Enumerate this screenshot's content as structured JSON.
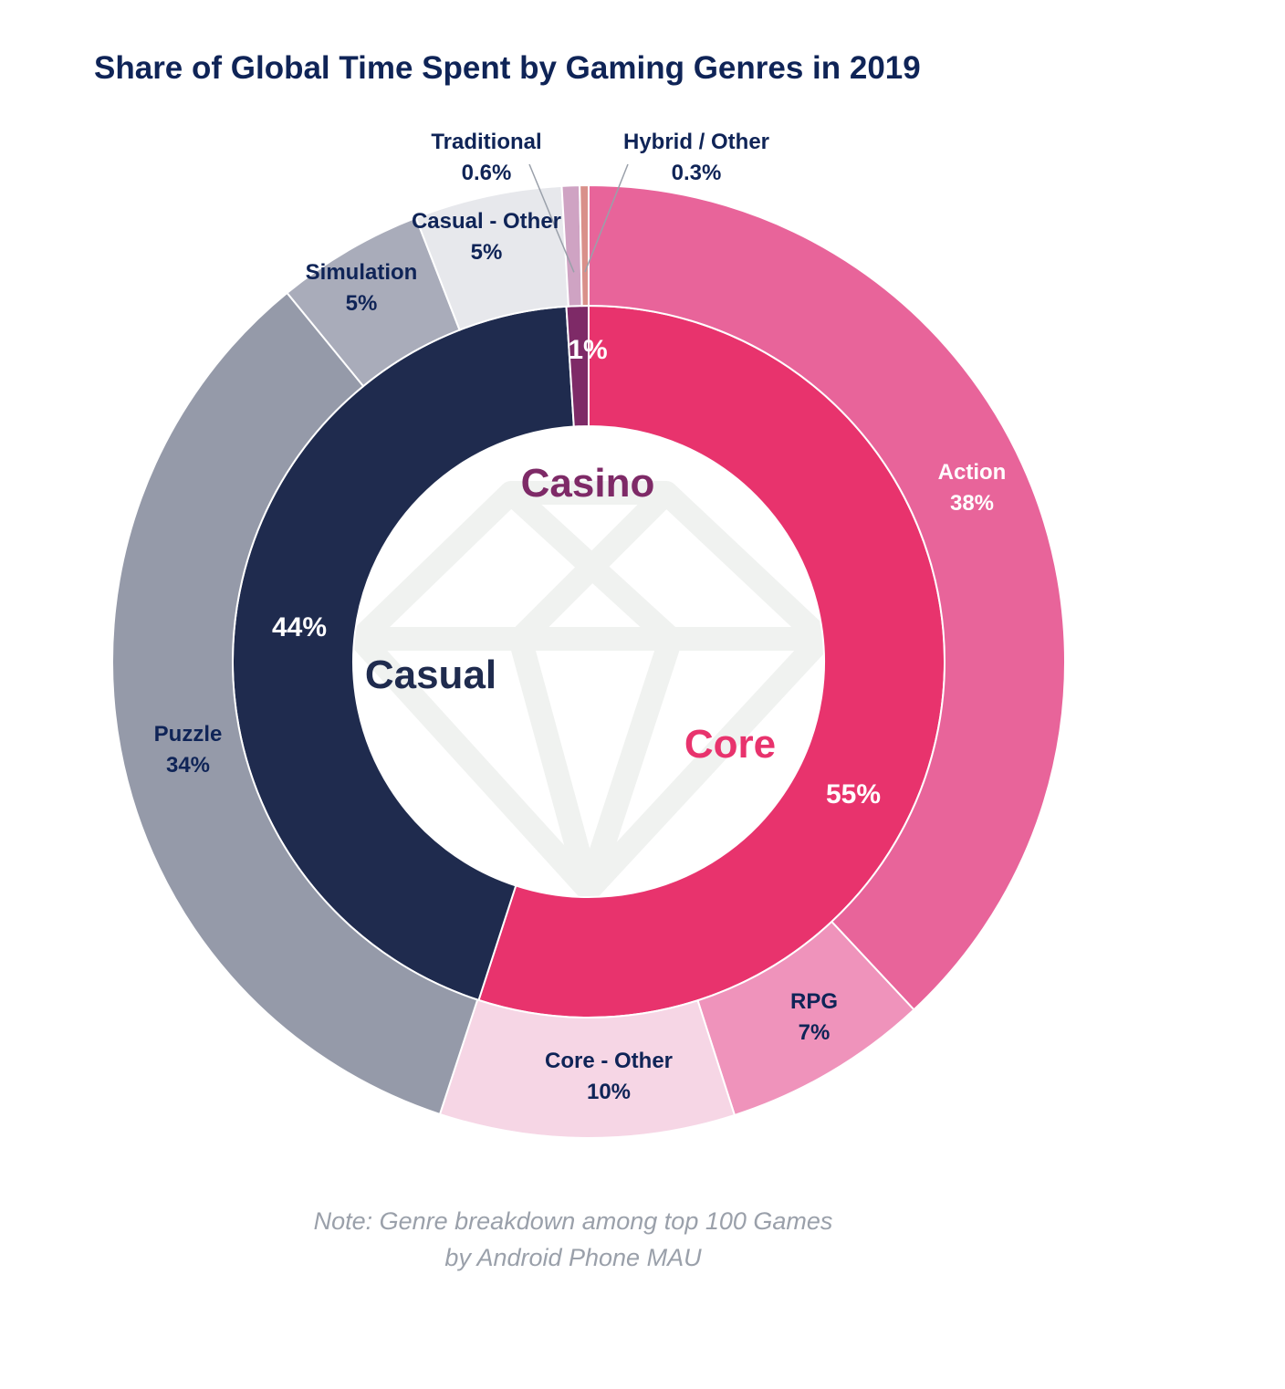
{
  "title": "Share of Global Time Spent by Gaming Genres in 2019",
  "note": {
    "line1": "Note: Genre breakdown among top 100 Games",
    "line2": "by Android Phone MAU"
  },
  "chart_data": {
    "type": "pie",
    "variant": "nested-donut",
    "inner_ring": [
      {
        "name": "Core",
        "value": 55,
        "label": "55%",
        "color": "#e8336d",
        "label_color": "#e8336d"
      },
      {
        "name": "Casual",
        "value": 44,
        "label": "44%",
        "color": "#1f2b4e",
        "label_color": "#1f2b4e"
      },
      {
        "name": "Casino",
        "value": 1,
        "label": "1%",
        "color": "#7e2a67",
        "label_color": "#7e2a67"
      }
    ],
    "outer_ring": [
      {
        "name": "Action",
        "value": 38,
        "label": "38%",
        "parent": "Core",
        "color": "#e8649a",
        "text_color": "#ffffff"
      },
      {
        "name": "RPG",
        "value": 7,
        "label": "7%",
        "parent": "Core",
        "color": "#ef93bb",
        "text_color": "#0f2457"
      },
      {
        "name": "Core - Other",
        "value": 10,
        "label": "10%",
        "parent": "Core",
        "color": "#f6d6e5",
        "text_color": "#0f2457"
      },
      {
        "name": "Puzzle",
        "value": 34,
        "label": "34%",
        "parent": "Casual",
        "color": "#959aa9",
        "text_color": "#0f2457"
      },
      {
        "name": "Simulation",
        "value": 5,
        "label": "5%",
        "parent": "Casual",
        "color": "#a9acba",
        "text_color": "#0f2457"
      },
      {
        "name": "Casual - Other",
        "value": 5,
        "label": "5%",
        "parent": "Casual",
        "color": "#e7e8ec",
        "text_color": "#0f2457"
      },
      {
        "name": "Traditional",
        "value": 0.6,
        "label": "0.6%",
        "parent": "Casino",
        "color": "#cfa3c3",
        "text_color": "#0f2457"
      },
      {
        "name": "Hybrid / Other",
        "value": 0.3,
        "label": "0.3%",
        "parent": "Casino",
        "color": "#d9908a",
        "text_color": "#0f2457"
      }
    ]
  }
}
